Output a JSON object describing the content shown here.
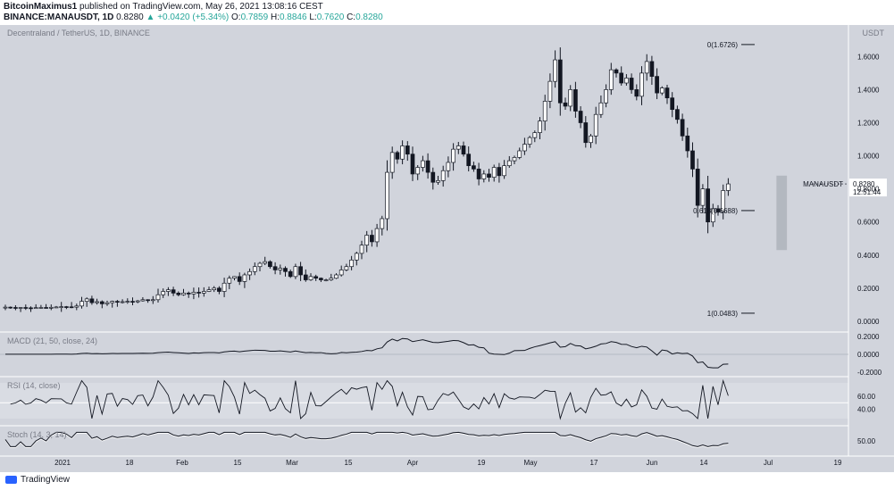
{
  "header": {
    "author": "BitcoinMaximus1",
    "published_text": "published on TradingView.com, May 26, 2021 13:08:16 CEST",
    "symbol_line": "BINANCE:MANAUSDT, 1D",
    "last": "0.8280",
    "change": "+0.0420 (+5.34%)",
    "o_label": "O:",
    "o_value": "0.7859",
    "h_label": "H:",
    "h_value": "0.8846",
    "l_label": "L:",
    "l_value": "0.7620",
    "c_label": "C:",
    "c_value": "0.8280"
  },
  "footer": {
    "logo_text": "TradingView"
  },
  "chart_data": [
    {
      "type": "candlestick",
      "title": "Decentraland / TetherUS, 1D, BINANCE",
      "currency_label": "USDT",
      "ylim": [
        -0.06,
        1.78
      ],
      "y_ticks": [
        "1.6000",
        "1.4000",
        "1.2000",
        "1.0000",
        "0.8000",
        "0.6000",
        "0.4000",
        "0.2000",
        "0.0000"
      ],
      "y_tick_values": [
        1.6,
        1.4,
        1.2,
        1.0,
        0.8,
        0.6,
        0.4,
        0.2,
        0.0
      ],
      "x_ticks": [
        "2021",
        "18",
        "Feb",
        "15",
        "Mar",
        "15",
        "Apr",
        "19",
        "May",
        "17",
        "Jun",
        "14",
        "Jul",
        "19"
      ],
      "price_label": {
        "symbol": "MANAUSDT",
        "value": "0.8280",
        "countdown": "12:51:44"
      },
      "fib_levels": [
        {
          "text": "0(1.6726)",
          "value": 1.6726
        },
        {
          "text": "0.618(0.6688)",
          "value": 0.6688
        },
        {
          "text": "1(0.0483)",
          "value": 0.0483
        }
      ],
      "highlight_box": {
        "from": "2021-05-19",
        "to": "2021-05-20",
        "low": 0.43,
        "high": 0.88
      },
      "close_series": {
        "start": "2020-12-18",
        "values": [
          0.085,
          0.083,
          0.082,
          0.083,
          0.081,
          0.08,
          0.082,
          0.083,
          0.082,
          0.084,
          0.086,
          0.088,
          0.087,
          0.085,
          0.092,
          0.12,
          0.135,
          0.112,
          0.118,
          0.105,
          0.112,
          0.12,
          0.115,
          0.118,
          0.12,
          0.117,
          0.123,
          0.13,
          0.125,
          0.13,
          0.16,
          0.18,
          0.19,
          0.17,
          0.16,
          0.17,
          0.165,
          0.175,
          0.17,
          0.18,
          0.19,
          0.2,
          0.18,
          0.23,
          0.26,
          0.27,
          0.24,
          0.28,
          0.3,
          0.33,
          0.35,
          0.36,
          0.33,
          0.31,
          0.32,
          0.3,
          0.27,
          0.33,
          0.28,
          0.25,
          0.27,
          0.26,
          0.25,
          0.25,
          0.26,
          0.28,
          0.31,
          0.33,
          0.37,
          0.41,
          0.46,
          0.52,
          0.48,
          0.56,
          0.62,
          0.9,
          1.02,
          0.98,
          1.06,
          1.01,
          0.89,
          0.93,
          0.97,
          0.9,
          0.84,
          0.85,
          0.91,
          0.96,
          1.04,
          1.06,
          1.01,
          0.94,
          0.92,
          0.86,
          0.89,
          0.87,
          0.93,
          0.88,
          0.94,
          0.97,
          0.99,
          1.03,
          1.07,
          1.11,
          1.14,
          1.21,
          1.33,
          1.45,
          1.58,
          1.32,
          1.3,
          1.4,
          1.27,
          1.2,
          1.08,
          1.12,
          1.25,
          1.32,
          1.4,
          1.52,
          1.5,
          1.44,
          1.47,
          1.4,
          1.36,
          1.5,
          1.57,
          1.48,
          1.38,
          1.41,
          1.35,
          1.28,
          1.22,
          1.12,
          1.03,
          0.92,
          0.7,
          0.8,
          0.6,
          0.68,
          0.66,
          0.79,
          0.83
        ]
      }
    },
    {
      "type": "line",
      "title": "MACD (21, 50, close, 24)",
      "y_ticks": [
        "0.2000",
        "0.0000",
        "-0.2000"
      ],
      "y_tick_values": [
        0.2,
        0.0,
        -0.2
      ],
      "ylim": [
        -0.24,
        0.24
      ]
    },
    {
      "type": "line",
      "title": "RSI (14, close)",
      "y_ticks": [
        "60.00",
        "40.00"
      ],
      "y_tick_values": [
        60,
        40
      ],
      "ylim": [
        15,
        90
      ]
    },
    {
      "type": "line",
      "title": "Stoch (14, 3, 14)",
      "y_ticks": [
        "50.00"
      ],
      "y_tick_values": [
        50
      ],
      "ylim": [
        0,
        100
      ]
    }
  ]
}
